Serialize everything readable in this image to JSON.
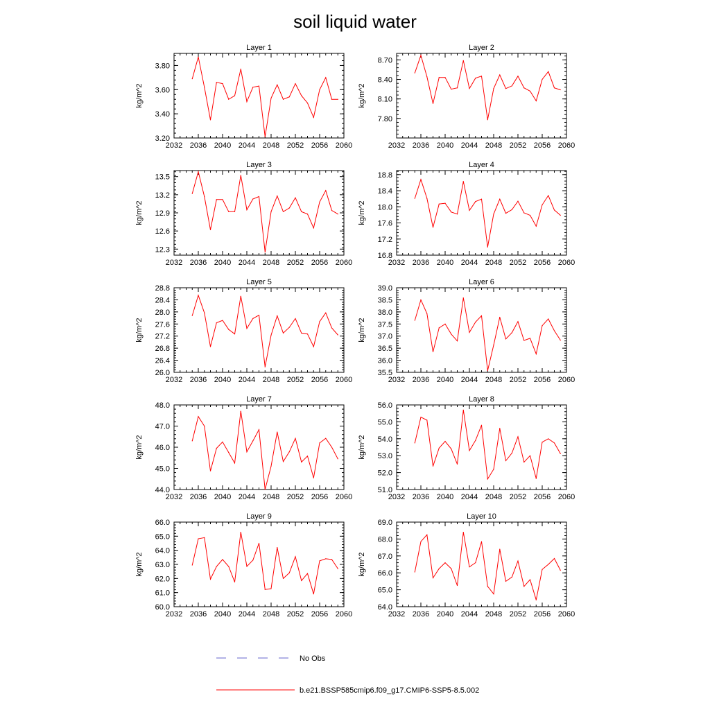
{
  "title": "soil liquid water",
  "legend": {
    "obs_label": "No Obs",
    "obs_color": "#6666cc",
    "model_label": "b.e21.BSSP585cmip6.f09_g17.CMIP6-SSP5-8.5.002",
    "model_color": "#ff0000"
  },
  "chart_data": [
    {
      "type": "line",
      "title": "Layer 1",
      "ylabel": "kg/m^2",
      "xlabel": "",
      "xlim": [
        2032,
        2060
      ],
      "ylim": [
        3.2,
        3.9
      ],
      "xticks": [
        "2032",
        "2036",
        "2040",
        "2044",
        "2048",
        "2052",
        "2056",
        "2060"
      ],
      "yticks": [
        "3.20",
        "3.40",
        "3.60",
        "3.80"
      ],
      "x": [
        2035,
        2036,
        2037,
        2038,
        2039,
        2040,
        2041,
        2042,
        2043,
        2044,
        2045,
        2046,
        2047,
        2048,
        2049,
        2050,
        2051,
        2052,
        2053,
        2054,
        2055,
        2056,
        2057,
        2058,
        2059
      ],
      "series": [
        {
          "name": "b.e21.BSSP585cmip6.f09_g17.CMIP6-SSP5-8.5.002",
          "values": [
            3.69,
            3.87,
            3.62,
            3.35,
            3.66,
            3.65,
            3.52,
            3.55,
            3.77,
            3.5,
            3.62,
            3.63,
            3.21,
            3.53,
            3.64,
            3.52,
            3.54,
            3.65,
            3.55,
            3.49,
            3.37,
            3.6,
            3.7,
            3.52,
            3.52
          ]
        }
      ]
    },
    {
      "type": "line",
      "title": "Layer 2",
      "ylabel": "kg/m^2",
      "xlabel": "",
      "xlim": [
        2032,
        2060
      ],
      "ylim": [
        7.5,
        8.8
      ],
      "xticks": [
        "2032",
        "2036",
        "2040",
        "2044",
        "2048",
        "2052",
        "2056",
        "2060"
      ],
      "yticks": [
        "7.80",
        "8.10",
        "8.40",
        "8.70"
      ],
      "x": [
        2035,
        2036,
        2037,
        2038,
        2039,
        2040,
        2041,
        2042,
        2043,
        2044,
        2045,
        2046,
        2047,
        2048,
        2049,
        2050,
        2051,
        2052,
        2053,
        2054,
        2055,
        2056,
        2057,
        2058,
        2059
      ],
      "series": [
        {
          "name": "b.e21.BSSP585cmip6.f09_g17.CMIP6-SSP5-8.5.002",
          "values": [
            8.5,
            8.77,
            8.44,
            8.03,
            8.43,
            8.43,
            8.25,
            8.27,
            8.69,
            8.26,
            8.42,
            8.45,
            7.78,
            8.26,
            8.47,
            8.26,
            8.3,
            8.45,
            8.27,
            8.22,
            8.07,
            8.4,
            8.52,
            8.27,
            8.24
          ]
        }
      ]
    },
    {
      "type": "line",
      "title": "Layer 3",
      "ylabel": "kg/m^2",
      "xlabel": "",
      "xlim": [
        2032,
        2060
      ],
      "ylim": [
        12.2,
        13.6
      ],
      "xticks": [
        "2032",
        "2036",
        "2040",
        "2044",
        "2048",
        "2052",
        "2056",
        "2060"
      ],
      "yticks": [
        "12.3",
        "12.6",
        "12.9",
        "13.2",
        "13.5"
      ],
      "x": [
        2035,
        2036,
        2037,
        2038,
        2039,
        2040,
        2041,
        2042,
        2043,
        2044,
        2045,
        2046,
        2047,
        2048,
        2049,
        2050,
        2051,
        2052,
        2053,
        2054,
        2055,
        2056,
        2057,
        2058,
        2059
      ],
      "series": [
        {
          "name": "b.e21.BSSP585cmip6.f09_g17.CMIP6-SSP5-8.5.002",
          "values": [
            13.22,
            13.58,
            13.17,
            12.62,
            13.12,
            13.12,
            12.92,
            12.92,
            13.52,
            12.95,
            13.13,
            13.17,
            12.25,
            12.92,
            13.18,
            12.92,
            12.98,
            13.15,
            12.92,
            12.88,
            12.65,
            13.08,
            13.27,
            12.94,
            12.88
          ]
        }
      ]
    },
    {
      "type": "line",
      "title": "Layer 4",
      "ylabel": "kg/m^2",
      "xlabel": "",
      "xlim": [
        2032,
        2060
      ],
      "ylim": [
        16.8,
        18.9
      ],
      "xticks": [
        "2032",
        "2036",
        "2040",
        "2044",
        "2048",
        "2052",
        "2056",
        "2060"
      ],
      "yticks": [
        "16.8",
        "17.2",
        "17.6",
        "18.0",
        "18.4",
        "18.8"
      ],
      "x": [
        2035,
        2036,
        2037,
        2038,
        2039,
        2040,
        2041,
        2042,
        2043,
        2044,
        2045,
        2046,
        2047,
        2048,
        2049,
        2050,
        2051,
        2052,
        2053,
        2054,
        2055,
        2056,
        2057,
        2058,
        2059
      ],
      "series": [
        {
          "name": "b.e21.BSSP585cmip6.f09_g17.CMIP6-SSP5-8.5.002",
          "values": [
            18.21,
            18.68,
            18.21,
            17.49,
            18.07,
            18.09,
            17.87,
            17.82,
            18.63,
            17.91,
            18.13,
            18.19,
            17.0,
            17.82,
            18.19,
            17.84,
            17.93,
            18.14,
            17.85,
            17.79,
            17.52,
            18.05,
            18.28,
            17.92,
            17.79
          ]
        }
      ]
    },
    {
      "type": "line",
      "title": "Layer 5",
      "ylabel": "kg/m^2",
      "xlabel": "",
      "xlim": [
        2032,
        2060
      ],
      "ylim": [
        26.0,
        28.8
      ],
      "xticks": [
        "2032",
        "2036",
        "2040",
        "2044",
        "2048",
        "2052",
        "2056",
        "2060"
      ],
      "yticks": [
        "26.0",
        "26.4",
        "26.8",
        "27.2",
        "27.6",
        "28.0",
        "28.4",
        "28.8"
      ],
      "x": [
        2035,
        2036,
        2037,
        2038,
        2039,
        2040,
        2041,
        2042,
        2043,
        2044,
        2045,
        2046,
        2047,
        2048,
        2049,
        2050,
        2051,
        2052,
        2053,
        2054,
        2055,
        2056,
        2057,
        2058,
        2059
      ],
      "series": [
        {
          "name": "b.e21.BSSP585cmip6.f09_g17.CMIP6-SSP5-8.5.002",
          "values": [
            27.88,
            28.55,
            27.97,
            26.85,
            27.64,
            27.72,
            27.42,
            27.27,
            28.52,
            27.45,
            27.78,
            27.89,
            26.18,
            27.23,
            27.87,
            27.3,
            27.49,
            27.78,
            27.3,
            27.27,
            26.85,
            27.68,
            27.97,
            27.47,
            27.24
          ]
        }
      ]
    },
    {
      "type": "line",
      "title": "Layer 6",
      "ylabel": "kg/m^2",
      "xlabel": "",
      "xlim": [
        2032,
        2060
      ],
      "ylim": [
        35.5,
        39.0
      ],
      "xticks": [
        "2032",
        "2036",
        "2040",
        "2044",
        "2048",
        "2052",
        "2056",
        "2060"
      ],
      "yticks": [
        "35.5",
        "36.0",
        "36.5",
        "37.0",
        "37.5",
        "38.0",
        "38.5",
        "39.0"
      ],
      "x": [
        2035,
        2036,
        2037,
        2038,
        2039,
        2040,
        2041,
        2042,
        2043,
        2044,
        2045,
        2046,
        2047,
        2048,
        2049,
        2050,
        2051,
        2052,
        2053,
        2054,
        2055,
        2056,
        2057,
        2058,
        2059
      ],
      "series": [
        {
          "name": "b.e21.BSSP585cmip6.f09_g17.CMIP6-SSP5-8.5.002",
          "values": [
            37.65,
            38.5,
            37.93,
            36.35,
            37.34,
            37.5,
            37.08,
            36.8,
            38.58,
            37.15,
            37.58,
            37.84,
            35.57,
            36.63,
            37.78,
            36.88,
            37.14,
            37.6,
            36.82,
            36.91,
            36.26,
            37.43,
            37.71,
            37.22,
            36.83
          ]
        }
      ]
    },
    {
      "type": "line",
      "title": "Layer 7",
      "ylabel": "kg/m^2",
      "xlabel": "",
      "xlim": [
        2032,
        2060
      ],
      "ylim": [
        44.0,
        48.0
      ],
      "xticks": [
        "2032",
        "2036",
        "2040",
        "2044",
        "2048",
        "2052",
        "2056",
        "2060"
      ],
      "yticks": [
        "44.0",
        "45.0",
        "46.0",
        "47.0",
        "48.0"
      ],
      "x": [
        2035,
        2036,
        2037,
        2038,
        2039,
        2040,
        2041,
        2042,
        2043,
        2044,
        2045,
        2046,
        2047,
        2048,
        2049,
        2050,
        2051,
        2052,
        2053,
        2054,
        2055,
        2056,
        2057,
        2058,
        2059
      ],
      "series": [
        {
          "name": "b.e21.BSSP585cmip6.f09_g17.CMIP6-SSP5-8.5.002",
          "values": [
            46.3,
            47.45,
            47.0,
            44.88,
            45.95,
            46.25,
            45.75,
            45.25,
            47.7,
            45.78,
            46.3,
            46.83,
            44.0,
            45.1,
            46.72,
            45.32,
            45.78,
            46.42,
            45.3,
            45.58,
            44.55,
            46.2,
            46.42,
            46.0,
            45.45
          ]
        }
      ]
    },
    {
      "type": "line",
      "title": "Layer 8",
      "ylabel": "kg/m^2",
      "xlabel": "",
      "xlim": [
        2032,
        2060
      ],
      "ylim": [
        51.0,
        56.0
      ],
      "xticks": [
        "2032",
        "2036",
        "2040",
        "2044",
        "2048",
        "2052",
        "2056",
        "2060"
      ],
      "yticks": [
        "51.0",
        "52.0",
        "53.0",
        "54.0",
        "55.0",
        "56.0"
      ],
      "x": [
        2035,
        2036,
        2037,
        2038,
        2039,
        2040,
        2041,
        2042,
        2043,
        2044,
        2045,
        2046,
        2047,
        2048,
        2049,
        2050,
        2051,
        2052,
        2053,
        2054,
        2055,
        2056,
        2057,
        2058,
        2059
      ],
      "series": [
        {
          "name": "b.e21.BSSP585cmip6.f09_g17.CMIP6-SSP5-8.5.002",
          "values": [
            53.75,
            55.28,
            55.1,
            52.38,
            53.45,
            53.85,
            53.4,
            52.5,
            55.7,
            53.3,
            53.9,
            54.8,
            51.62,
            52.2,
            54.62,
            52.7,
            53.15,
            54.12,
            52.62,
            53.0,
            51.65,
            53.8,
            54.0,
            53.75,
            53.12
          ]
        }
      ]
    },
    {
      "type": "line",
      "title": "Layer 9",
      "ylabel": "kg/m^2",
      "xlabel": "",
      "xlim": [
        2032,
        2060
      ],
      "ylim": [
        60.0,
        66.0
      ],
      "xticks": [
        "2032",
        "2036",
        "2040",
        "2044",
        "2048",
        "2052",
        "2056",
        "2060"
      ],
      "yticks": [
        "60.0",
        "61.0",
        "62.0",
        "63.0",
        "64.0",
        "65.0",
        "66.0"
      ],
      "x": [
        2035,
        2036,
        2037,
        2038,
        2039,
        2040,
        2041,
        2042,
        2043,
        2044,
        2045,
        2046,
        2047,
        2048,
        2049,
        2050,
        2051,
        2052,
        2053,
        2054,
        2055,
        2056,
        2057,
        2058,
        2059
      ],
      "series": [
        {
          "name": "b.e21.BSSP585cmip6.f09_g17.CMIP6-SSP5-8.5.002",
          "values": [
            62.95,
            64.82,
            64.9,
            61.95,
            62.85,
            63.35,
            62.85,
            61.75,
            65.28,
            62.85,
            63.3,
            64.5,
            61.22,
            61.28,
            64.2,
            62.0,
            62.4,
            63.55,
            61.85,
            62.35,
            60.9,
            63.25,
            63.4,
            63.35,
            62.7
          ]
        }
      ]
    },
    {
      "type": "line",
      "title": "Layer 10",
      "ylabel": "kg/m^2",
      "xlabel": "",
      "xlim": [
        2032,
        2060
      ],
      "ylim": [
        64.0,
        69.0
      ],
      "xticks": [
        "2032",
        "2036",
        "2040",
        "2044",
        "2048",
        "2052",
        "2056",
        "2060"
      ],
      "yticks": [
        "64.0",
        "65.0",
        "66.0",
        "67.0",
        "68.0",
        "69.0"
      ],
      "x": [
        2035,
        2036,
        2037,
        2038,
        2039,
        2040,
        2041,
        2042,
        2043,
        2044,
        2045,
        2046,
        2047,
        2048,
        2049,
        2050,
        2051,
        2052,
        2053,
        2054,
        2055,
        2056,
        2057,
        2058,
        2059
      ],
      "series": [
        {
          "name": "b.e21.BSSP585cmip6.f09_g17.CMIP6-SSP5-8.5.002",
          "values": [
            66.05,
            67.85,
            68.25,
            65.7,
            66.25,
            66.6,
            66.25,
            65.25,
            68.4,
            66.35,
            66.6,
            67.85,
            65.2,
            64.75,
            67.4,
            65.5,
            65.75,
            66.7,
            65.2,
            65.6,
            64.4,
            66.2,
            66.5,
            66.85,
            66.15
          ]
        }
      ]
    }
  ]
}
